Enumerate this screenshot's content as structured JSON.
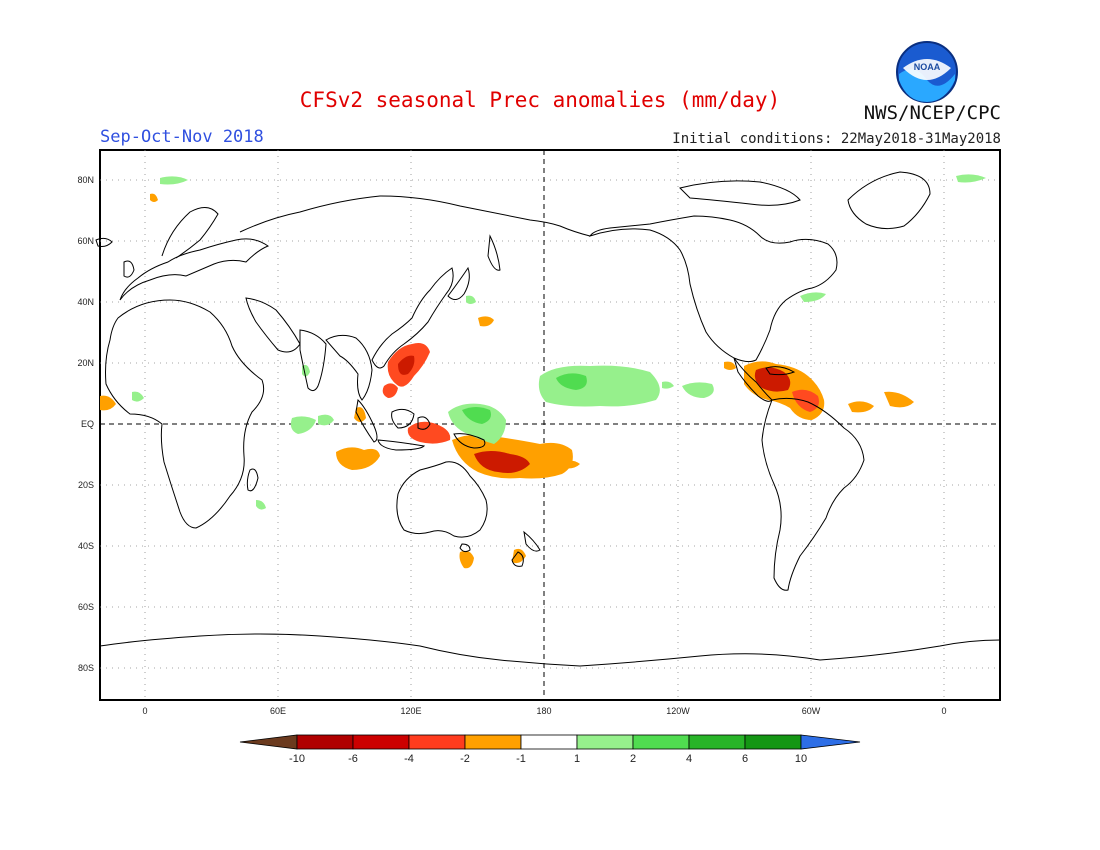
{
  "header": {
    "title": "CFSv2 seasonal Prec anomalies (mm/day)",
    "season": "Sep-Oct-Nov 2018",
    "initial_conditions": "Initial conditions: 22May2018-31May2018",
    "agency": "NWS/NCEP/CPC",
    "logo_text": "NOAA"
  },
  "map": {
    "projection": "cylindrical equidistant",
    "lon_labels": [
      "0",
      "60E",
      "120E",
      "180",
      "120W",
      "60W",
      "0"
    ],
    "lat_labels": [
      "80N",
      "60N",
      "40N",
      "20N",
      "EQ",
      "20S",
      "40S",
      "60S",
      "80S"
    ]
  },
  "colorbar": {
    "labels": [
      "-10",
      "-6",
      "-4",
      "-2",
      "-1",
      "1",
      "2",
      "4",
      "6",
      "10"
    ],
    "colors": [
      "#6b3a1e",
      "#b00000",
      "#cc0000",
      "#ff3c1e",
      "#ffa000",
      "#ffffff",
      "#96f08c",
      "#50dc50",
      "#28b428",
      "#149614",
      "#2d6ee6"
    ]
  },
  "anomaly_colors": {
    "dry_strong": "#cc1a00",
    "dry": "#ff4a20",
    "dry_weak": "#ffa000",
    "wet_weak": "#96f08c",
    "wet": "#50dc50"
  }
}
